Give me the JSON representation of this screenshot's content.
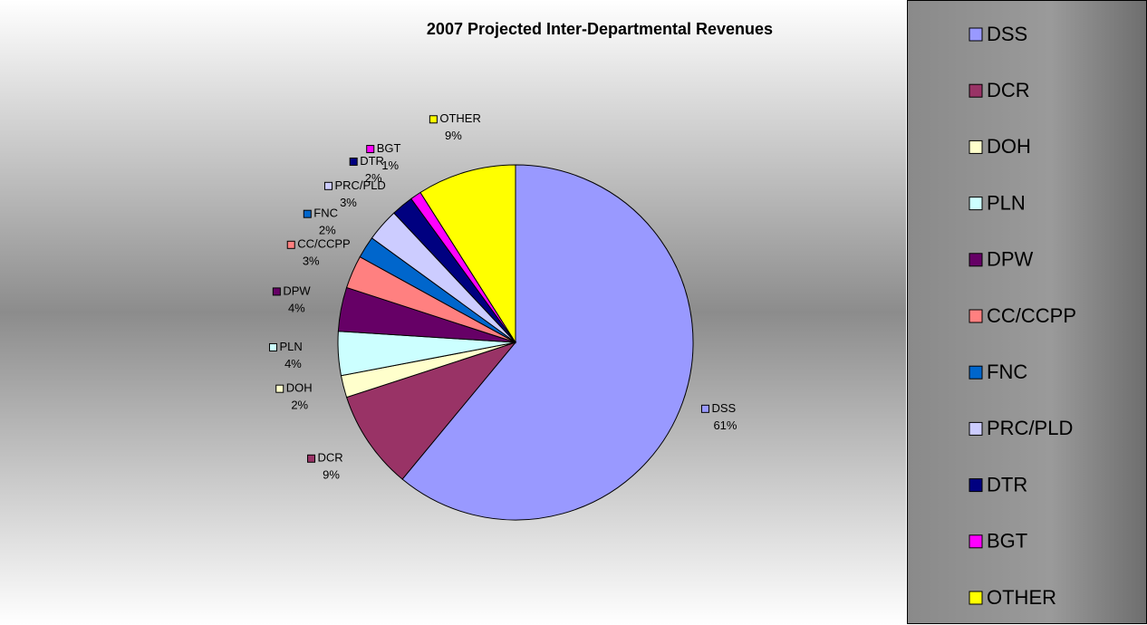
{
  "chart_data": {
    "type": "pie",
    "title": "2007 Projected Inter-Departmental Revenues",
    "categories": [
      "DSS",
      "DCR",
      "DOH",
      "PLN",
      "DPW",
      "CC/CCPP",
      "FNC",
      "PRC/PLD",
      "DTR",
      "BGT",
      "OTHER"
    ],
    "values": [
      61,
      9,
      2,
      4,
      4,
      3,
      2,
      3,
      2,
      1,
      9
    ],
    "value_labels": [
      "61%",
      "9%",
      "2%",
      "4%",
      "4%",
      "3%",
      "2%",
      "3%",
      "2%",
      "1%",
      "9%"
    ],
    "colors": [
      "#9999ff",
      "#993366",
      "#ffffcc",
      "#ccffff",
      "#660066",
      "#ff8080",
      "#0066cc",
      "#ccccff",
      "#000080",
      "#ff00ff",
      "#ffff00"
    ],
    "legend": "right"
  }
}
